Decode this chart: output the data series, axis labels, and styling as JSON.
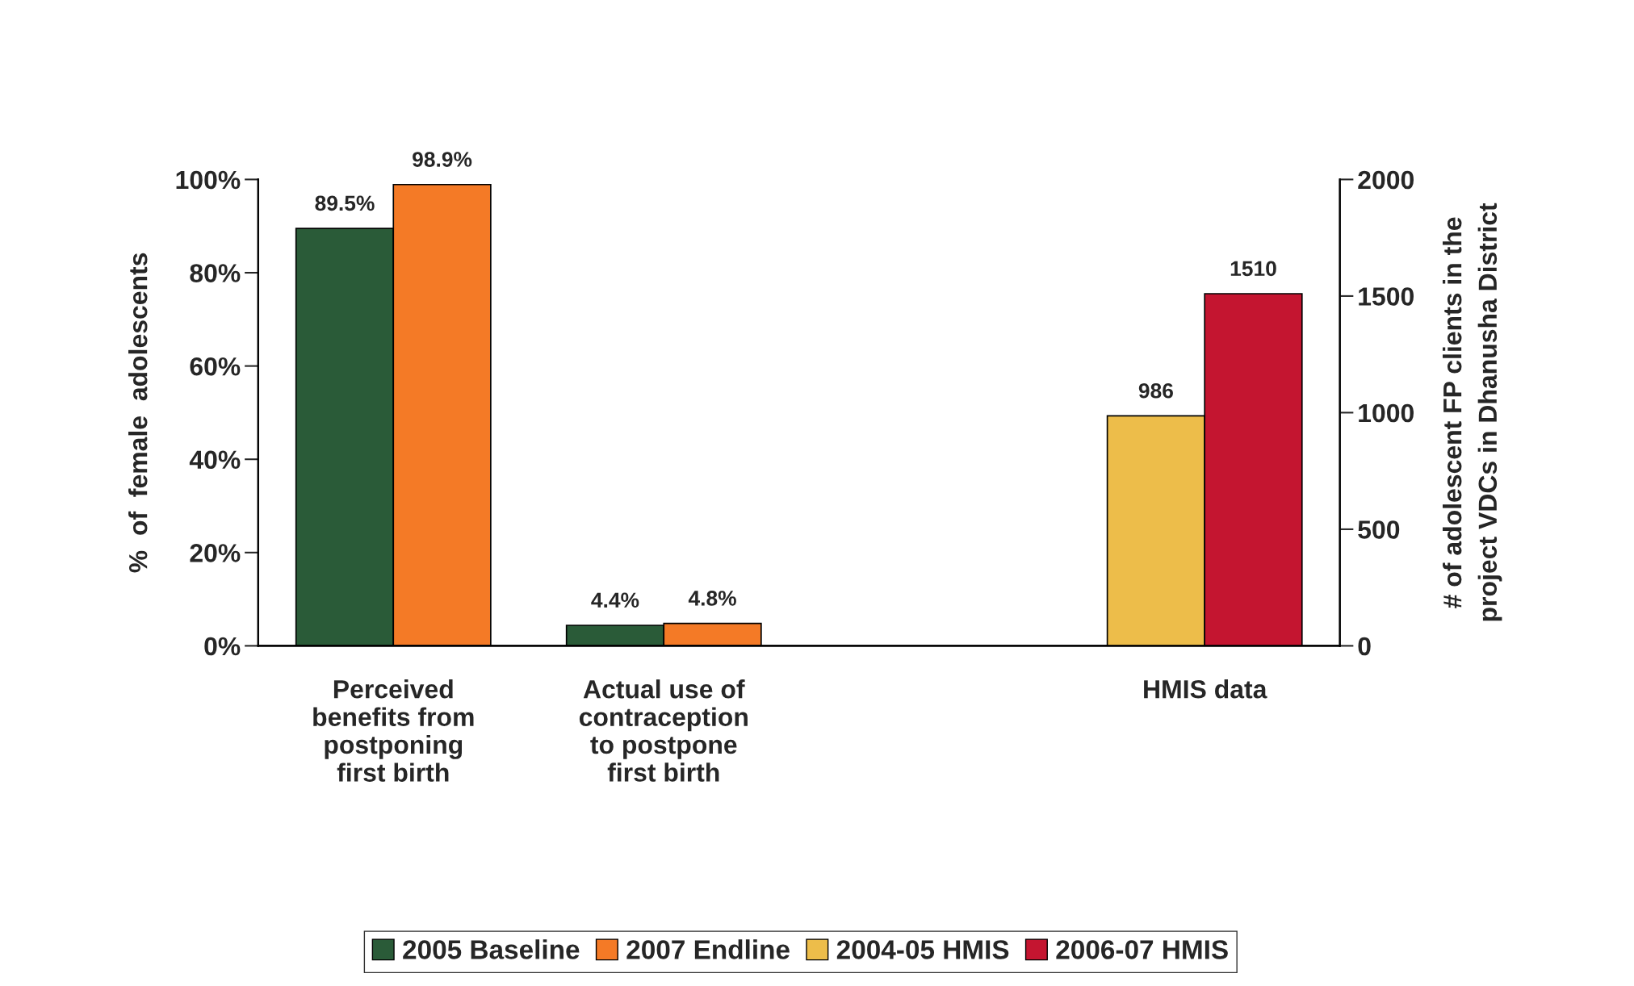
{
  "chart_data": {
    "type": "bar",
    "ylabel": "%  of  female  adolescents",
    "y2label": "# of adolescent FP clients in the\nproject VDCs in Dhanusha District",
    "categories": [
      "Perceived\nbenefits from\npostponing\nfirst birth",
      "Actual use of\ncontraception\nto postpone\nfirst birth",
      null,
      "HMIS data"
    ],
    "series": [
      {
        "name": "2005 Baseline",
        "color": "#2a5b38",
        "values": [
          89.5,
          4.4,
          null,
          null
        ],
        "value_labels": [
          "89.5%",
          "4.4%",
          null,
          null
        ]
      },
      {
        "name": "2007 Endline",
        "color": "#f47a26",
        "values": [
          98.9,
          4.8,
          null,
          null
        ],
        "value_labels": [
          "98.9%",
          "4.8%",
          null,
          null
        ]
      },
      {
        "name": "2004-05 HMIS",
        "color": "#edbd4a",
        "axis": "y2",
        "values": [
          null,
          null,
          null,
          986
        ],
        "value_labels": [
          null,
          null,
          null,
          "986"
        ]
      },
      {
        "name": "2006-07 HMIS",
        "color": "#c41530",
        "axis": "y2",
        "values": [
          null,
          null,
          null,
          1510
        ],
        "value_labels": [
          null,
          null,
          null,
          "1510"
        ]
      }
    ],
    "ylim": [
      0,
      100
    ],
    "yticks": [
      {
        "value": 0,
        "label": "0%"
      },
      {
        "value": 20,
        "label": "20%"
      },
      {
        "value": 40,
        "label": "40%"
      },
      {
        "value": 60,
        "label": "60%"
      },
      {
        "value": 80,
        "label": "80%"
      },
      {
        "value": 100,
        "label": "100%"
      }
    ],
    "y2lim": [
      0,
      2000
    ],
    "y2ticks": [
      0,
      500,
      1000,
      1500,
      2000
    ],
    "legend": "bottom",
    "grid": false
  }
}
